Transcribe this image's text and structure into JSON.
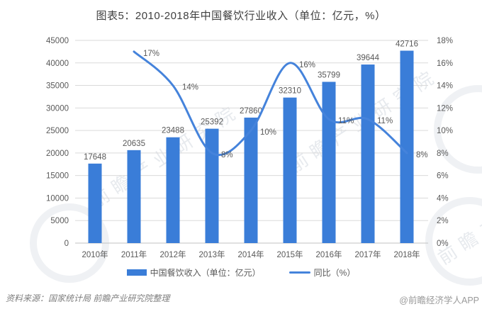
{
  "chart_data": {
    "type": "bar+line",
    "title": "图表5：2010-2018年中国餐饮行业收入（单位：亿元，%）",
    "categories": [
      "2010年",
      "2011年",
      "2012年",
      "2013年",
      "2014年",
      "2015年",
      "2016年",
      "2017年",
      "2018年"
    ],
    "series": [
      {
        "name": "中国餐饮收入（单位：亿元）",
        "type": "bar",
        "axis": "left",
        "values": [
          17648,
          20635,
          23488,
          25392,
          27860,
          32310,
          35799,
          39644,
          42716
        ]
      },
      {
        "name": "同比（%）",
        "type": "line",
        "axis": "right",
        "values": [
          null,
          17,
          14,
          8,
          10,
          16,
          11,
          11,
          8
        ],
        "labels": [
          "",
          "17%",
          "14%",
          "8%",
          "10%",
          "16%",
          "11%",
          "11%",
          "8%"
        ]
      }
    ],
    "left_axis": {
      "min": 0,
      "max": 45000,
      "step": 5000,
      "ticks": [
        "45000",
        "40000",
        "35000",
        "30000",
        "25000",
        "20000",
        "15000",
        "10000",
        "5000",
        "0"
      ]
    },
    "right_axis": {
      "min": 0,
      "max": 18,
      "step": 2,
      "ticks": [
        "18%",
        "16%",
        "14%",
        "12%",
        "10%",
        "8%",
        "6%",
        "4%",
        "2%",
        "0%"
      ]
    },
    "grid": true,
    "legend_position": "bottom",
    "colors": {
      "bar": "#3A7DD8",
      "line": "#4583DB",
      "grid": "#DADADA",
      "axis_line": "#C2C2C2",
      "label": "#595959",
      "title": "#3F3F3F"
    }
  },
  "footer": {
    "source": "资料来源：国家统计局 前瞻产业研究院整理",
    "credit": "@前瞻经济学人APP"
  },
  "watermark": {
    "text": "前瞻产业研究院"
  }
}
